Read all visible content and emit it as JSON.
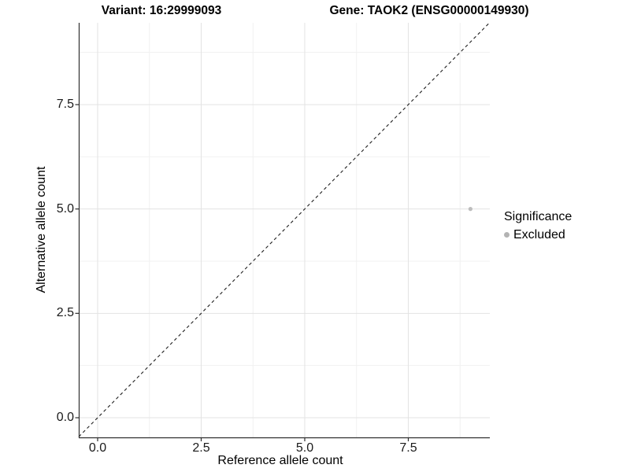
{
  "figure": {
    "title_left": "Variant: 16:29999093",
    "title_right": "Gene: TAOK2 (ENSG00000149930)"
  },
  "chart_data": {
    "type": "scatter",
    "title": "Variant: 16:29999093   Gene: TAOK2 (ENSG00000149930)",
    "xlabel": "Reference allele count",
    "ylabel": "Alternative allele count",
    "xlim": [
      -0.456,
      9.468
    ],
    "ylim": [
      -0.471,
      9.459
    ],
    "major_breaks": [
      0,
      2.5,
      5,
      7.5
    ],
    "minor_breaks": [
      1.25,
      3.75,
      6.25,
      8.75
    ],
    "x_tick_labels": [
      "0.0",
      "2.5",
      "5.0",
      "7.5"
    ],
    "y_tick_labels": [
      "0.0",
      "2.5",
      "5.0",
      "7.5"
    ],
    "grid": {
      "major_color": "#e3e3e3",
      "minor_color": "#f1f1f1",
      "on": true
    },
    "axis_line_color": "#2f2f2f",
    "identity_line": {
      "style": "dashed",
      "slope": 1,
      "intercept": 0,
      "color": "#1f1f1f"
    },
    "series": [
      {
        "name": "Excluded",
        "color": "#bdbdbd",
        "points": [
          {
            "x": 9,
            "y": 5
          }
        ]
      }
    ],
    "legend": {
      "position": "right",
      "title": "Significance",
      "entries": [
        {
          "label": "Excluded",
          "color": "#b3b3b3"
        }
      ]
    }
  }
}
